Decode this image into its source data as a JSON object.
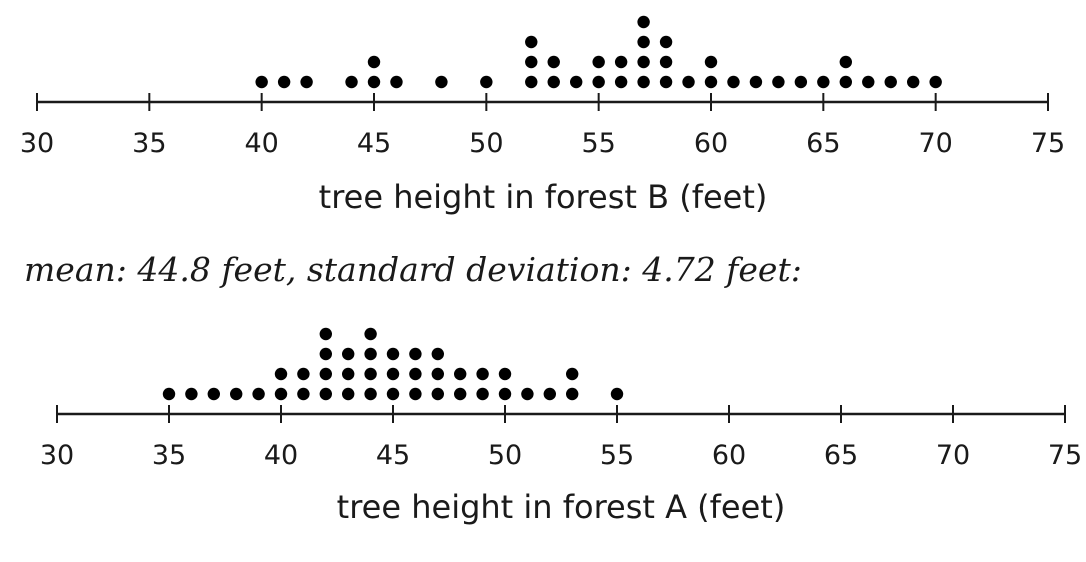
{
  "chart_data": [
    {
      "type": "dot",
      "xlabel": "tree height in forest B (feet)",
      "xlim": [
        30,
        75
      ],
      "ticks": [
        30,
        35,
        40,
        45,
        50,
        55,
        60,
        65,
        70,
        75
      ],
      "dot_color": "#000000",
      "points": [
        {
          "x": 40,
          "count": 1
        },
        {
          "x": 41,
          "count": 1
        },
        {
          "x": 42,
          "count": 1
        },
        {
          "x": 44,
          "count": 1
        },
        {
          "x": 45,
          "count": 2
        },
        {
          "x": 46,
          "count": 1
        },
        {
          "x": 48,
          "count": 1
        },
        {
          "x": 50,
          "count": 1
        },
        {
          "x": 52,
          "count": 3
        },
        {
          "x": 53,
          "count": 2
        },
        {
          "x": 54,
          "count": 1
        },
        {
          "x": 55,
          "count": 2
        },
        {
          "x": 56,
          "count": 2
        },
        {
          "x": 57,
          "count": 4
        },
        {
          "x": 58,
          "count": 3
        },
        {
          "x": 59,
          "count": 1
        },
        {
          "x": 60,
          "count": 2
        },
        {
          "x": 61,
          "count": 1
        },
        {
          "x": 62,
          "count": 1
        },
        {
          "x": 63,
          "count": 1
        },
        {
          "x": 64,
          "count": 1
        },
        {
          "x": 65,
          "count": 1
        },
        {
          "x": 66,
          "count": 2
        },
        {
          "x": 67,
          "count": 1
        },
        {
          "x": 68,
          "count": 1
        },
        {
          "x": 69,
          "count": 1
        },
        {
          "x": 70,
          "count": 1
        }
      ]
    },
    {
      "type": "dot",
      "xlabel": "tree height in forest A (feet)",
      "xlim": [
        30,
        75
      ],
      "ticks": [
        30,
        35,
        40,
        45,
        50,
        55,
        60,
        65,
        70,
        75
      ],
      "dot_color": "#000000",
      "points": [
        {
          "x": 35,
          "count": 1
        },
        {
          "x": 36,
          "count": 1
        },
        {
          "x": 37,
          "count": 1
        },
        {
          "x": 38,
          "count": 1
        },
        {
          "x": 39,
          "count": 1
        },
        {
          "x": 40,
          "count": 2
        },
        {
          "x": 41,
          "count": 2
        },
        {
          "x": 42,
          "count": 4
        },
        {
          "x": 43,
          "count": 3
        },
        {
          "x": 44,
          "count": 4
        },
        {
          "x": 45,
          "count": 3
        },
        {
          "x": 46,
          "count": 3
        },
        {
          "x": 47,
          "count": 3
        },
        {
          "x": 48,
          "count": 2
        },
        {
          "x": 49,
          "count": 2
        },
        {
          "x": 50,
          "count": 2
        },
        {
          "x": 51,
          "count": 1
        },
        {
          "x": 52,
          "count": 1
        },
        {
          "x": 53,
          "count": 2
        },
        {
          "x": 55,
          "count": 1
        }
      ]
    }
  ],
  "stats_note": "mean: 44.8 feet, standard deviation: 4.72 feet:"
}
